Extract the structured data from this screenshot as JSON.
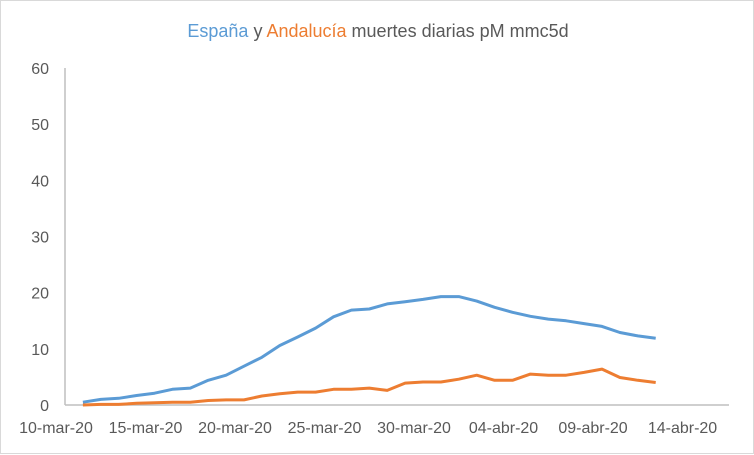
{
  "chart_data": {
    "type": "line",
    "title_parts": {
      "spain": "España",
      "and": "y",
      "andalucia": "Andalucía",
      "rest": "muertes diarias pM mmc5d"
    },
    "colors": {
      "spain": "#5B9BD5",
      "andalucia": "#ED7D31",
      "text": "#595959"
    },
    "ylim": [
      0,
      60
    ],
    "yticks": [
      "0",
      "10",
      "20",
      "30",
      "40",
      "50",
      "60"
    ],
    "xticks": [
      "10-mar-20",
      "15-mar-20",
      "20-mar-20",
      "25-mar-20",
      "30-mar-20",
      "04-abr-20",
      "09-abr-20",
      "14-abr-20"
    ],
    "x_start": "11-mar-20",
    "x_end": "12-abr-20",
    "series": [
      {
        "name": "España",
        "values": [
          0.5,
          1.0,
          1.2,
          1.7,
          2.1,
          2.8,
          3.0,
          4.4,
          5.3,
          6.9,
          8.5,
          10.6,
          12.1,
          13.7,
          15.7,
          16.9,
          17.1,
          18.0,
          18.4,
          18.8,
          19.3,
          19.3,
          18.5,
          17.4,
          16.5,
          15.8,
          15.3,
          15.0,
          14.5,
          14.0,
          12.9,
          12.3,
          11.9
        ]
      },
      {
        "name": "Andalucía",
        "values": [
          0,
          0.1,
          0.1,
          0.3,
          0.4,
          0.5,
          0.5,
          0.8,
          0.9,
          0.9,
          1.6,
          2.0,
          2.3,
          2.3,
          2.8,
          2.8,
          3.0,
          2.6,
          3.9,
          4.1,
          4.1,
          4.6,
          5.3,
          4.4,
          4.4,
          5.5,
          5.3,
          5.3,
          5.8,
          6.4,
          4.9,
          4.4,
          4.0
        ]
      }
    ]
  }
}
